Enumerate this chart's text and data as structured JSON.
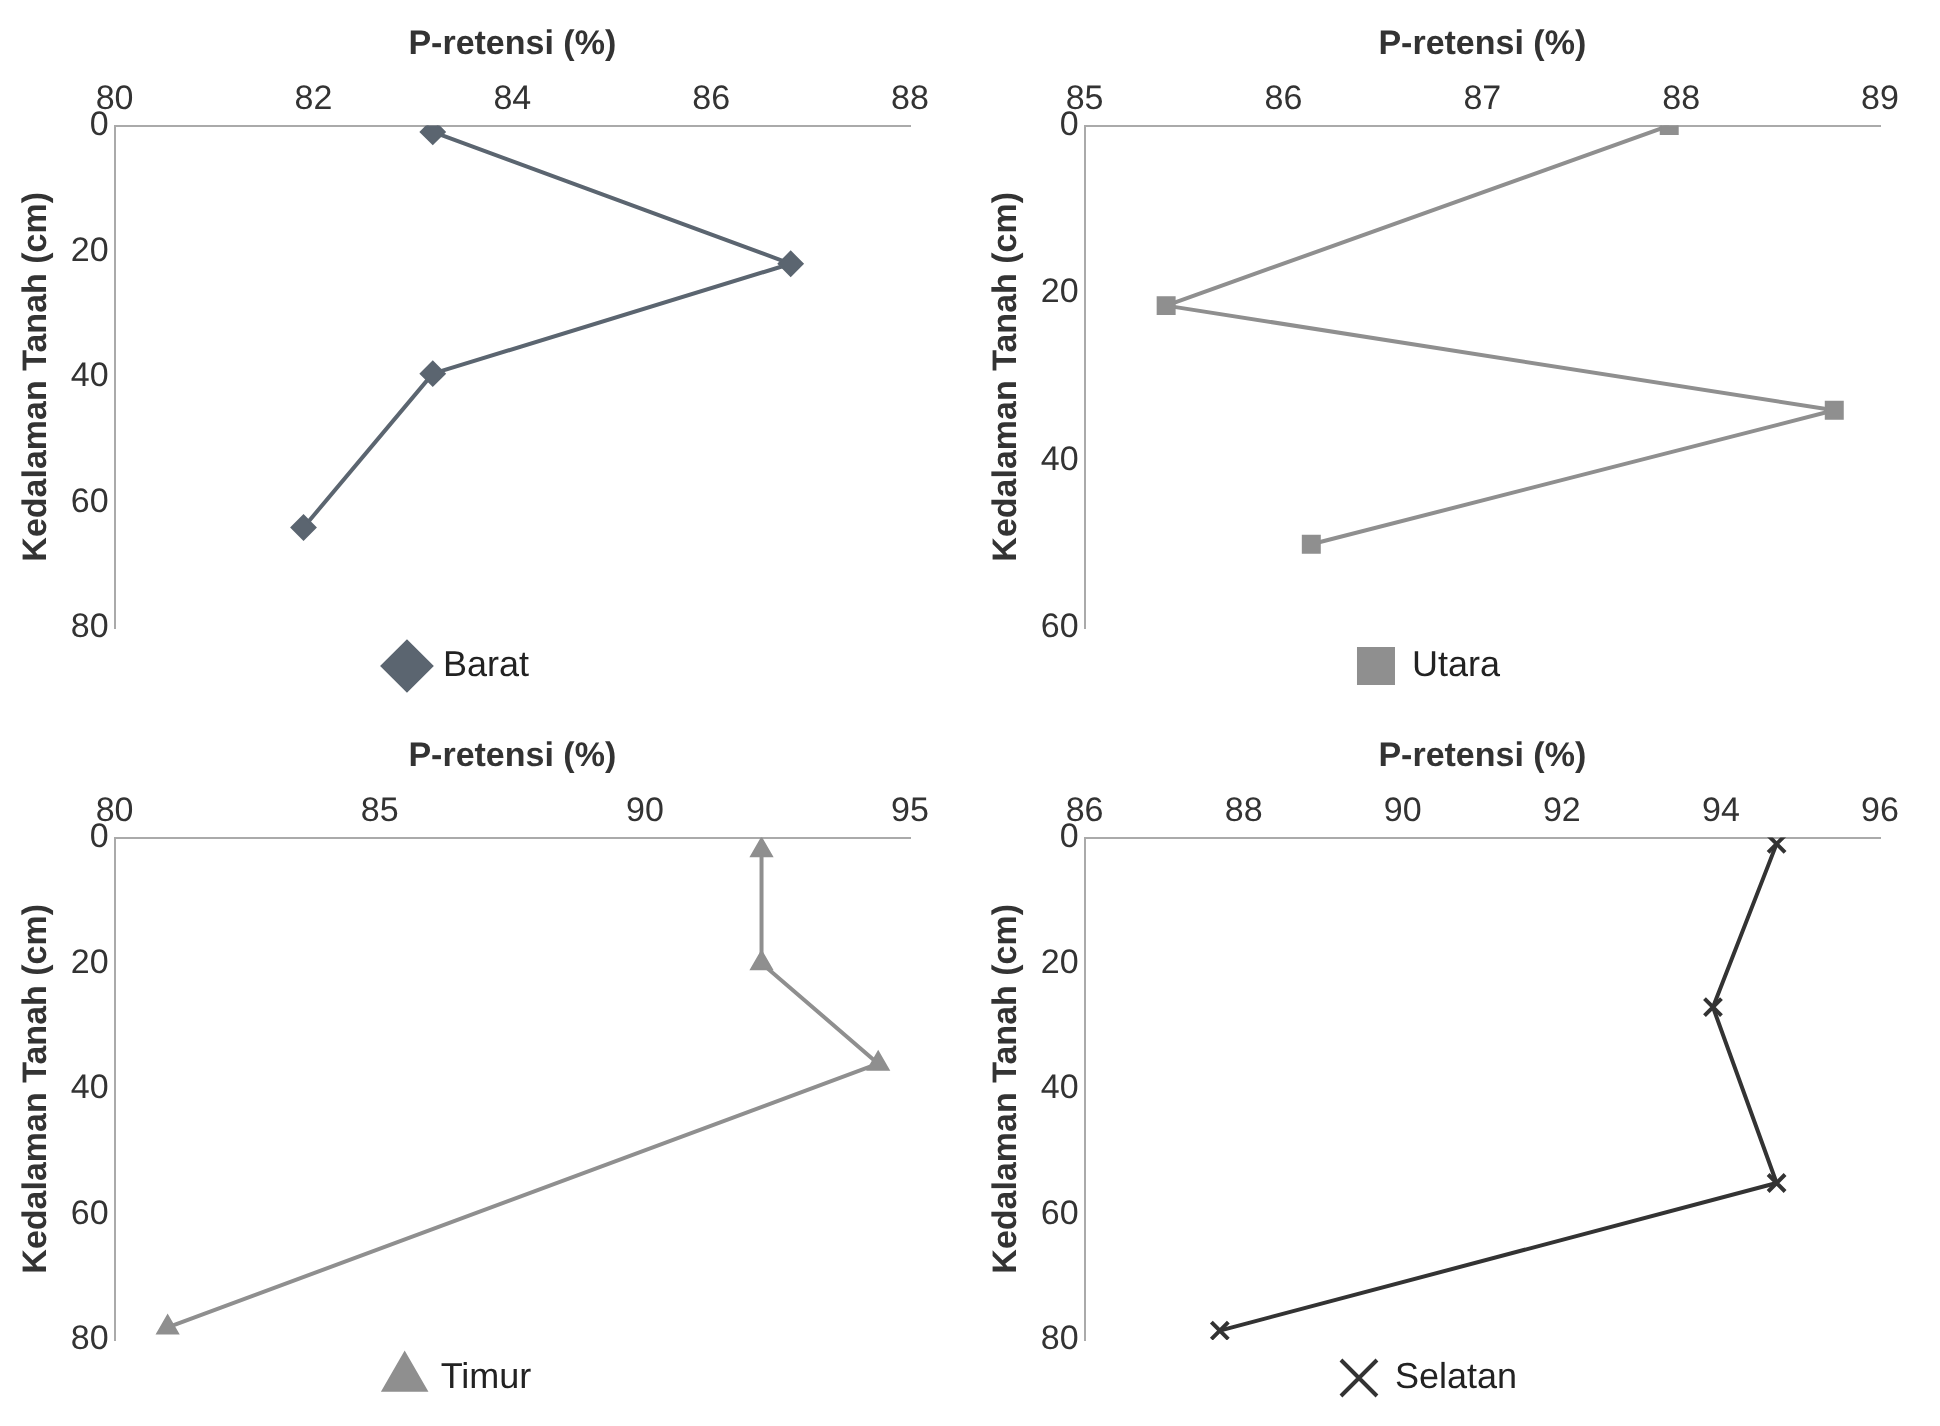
{
  "chart_data": [
    {
      "type": "line",
      "xlabel": "P-retensi (%)",
      "ylabel": "Kedalaman Tanah (cm)",
      "xlim": [
        80,
        88
      ],
      "xticks": [
        80,
        82,
        84,
        86,
        88
      ],
      "ylim": [
        80,
        0
      ],
      "yticks": [
        0,
        20,
        40,
        60,
        80
      ],
      "grid": false,
      "legend": "bottom",
      "marker": "diamond",
      "series": [
        {
          "name": "Barat",
          "color": "#5b6570",
          "x": [
            83.2,
            86.8,
            83.2,
            81.9
          ],
          "values": [
            1,
            22,
            39.5,
            64
          ]
        }
      ]
    },
    {
      "type": "line",
      "xlabel": "P-retensi (%)",
      "ylabel": "Kedalaman Tanah (cm)",
      "xlim": [
        85,
        89
      ],
      "xticks": [
        85,
        86,
        87,
        88,
        89
      ],
      "ylim": [
        60,
        0
      ],
      "yticks": [
        0,
        20,
        40,
        60
      ],
      "grid": false,
      "legend": "bottom",
      "marker": "square",
      "series": [
        {
          "name": "Utara",
          "color": "#8f8f8f",
          "x": [
            87.94,
            85.41,
            88.77,
            86.14
          ],
          "values": [
            0,
            21.5,
            34,
            50
          ]
        }
      ]
    },
    {
      "type": "line",
      "xlabel": "P-retensi (%)",
      "ylabel": "Kedalaman Tanah (cm)",
      "xlim": [
        80,
        95
      ],
      "xticks": [
        80,
        85,
        90,
        95
      ],
      "ylim": [
        80,
        0
      ],
      "yticks": [
        0,
        20,
        40,
        60,
        80
      ],
      "grid": false,
      "legend": "bottom",
      "marker": "triangle",
      "series": [
        {
          "name": "Timur",
          "color": "#8f8f8f",
          "x": [
            92.2,
            92.2,
            94.4,
            81.0
          ],
          "values": [
            2,
            20,
            36,
            78
          ]
        }
      ]
    },
    {
      "type": "line",
      "xlabel": "P-retensi (%)",
      "ylabel": "Kedalaman Tanah (cm)",
      "xlim": [
        86,
        96
      ],
      "xticks": [
        86,
        88,
        90,
        92,
        94,
        96
      ],
      "ylim": [
        80,
        0
      ],
      "yticks": [
        0,
        20,
        40,
        60,
        80
      ],
      "grid": false,
      "legend": "bottom",
      "marker": "cross",
      "series": [
        {
          "name": "Selatan",
          "color": "#333333",
          "x": [
            94.7,
            93.9,
            94.7,
            87.7
          ],
          "values": [
            1,
            27,
            55,
            78.5
          ]
        }
      ]
    }
  ]
}
